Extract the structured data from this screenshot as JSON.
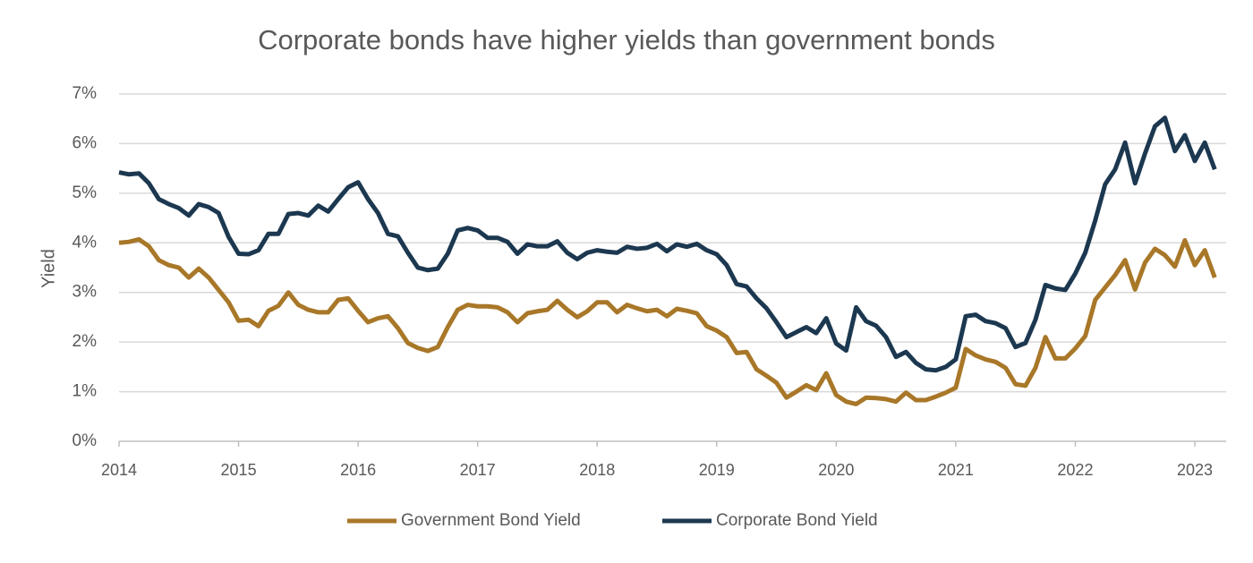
{
  "chart_data": {
    "type": "line",
    "title": "Corporate bonds have higher yields than government bonds",
    "y_label": "Yield",
    "categories": [
      "2014",
      null,
      null,
      null,
      null,
      null,
      null,
      null,
      null,
      null,
      null,
      null,
      "2015",
      null,
      null,
      null,
      null,
      null,
      null,
      null,
      null,
      null,
      null,
      null,
      "2016",
      null,
      null,
      null,
      null,
      null,
      null,
      null,
      null,
      null,
      null,
      null,
      "2017",
      null,
      null,
      null,
      null,
      null,
      null,
      null,
      null,
      null,
      null,
      null,
      "2018",
      null,
      null,
      null,
      null,
      null,
      null,
      null,
      null,
      null,
      null,
      null,
      "2019",
      null,
      null,
      null,
      null,
      null,
      null,
      null,
      null,
      null,
      null,
      null,
      "2020",
      null,
      null,
      null,
      null,
      null,
      null,
      null,
      null,
      null,
      null,
      null,
      "2021",
      null,
      null,
      null,
      null,
      null,
      null,
      null,
      null,
      null,
      null,
      null,
      "2022",
      null,
      null,
      null,
      null,
      null,
      null,
      null,
      null,
      null,
      null,
      null,
      "2023",
      null,
      null
    ],
    "series": [
      {
        "name": "Government Bond Yield",
        "color": "#a87728",
        "values": [
          4.0,
          4.02,
          4.07,
          3.93,
          3.65,
          3.55,
          3.5,
          3.3,
          3.48,
          3.3,
          3.05,
          2.8,
          2.43,
          2.45,
          2.32,
          2.63,
          2.73,
          3.0,
          2.75,
          2.65,
          2.6,
          2.6,
          2.85,
          2.88,
          2.63,
          2.4,
          2.48,
          2.52,
          2.28,
          1.98,
          1.88,
          1.82,
          1.9,
          2.3,
          2.65,
          2.75,
          2.72,
          2.72,
          2.7,
          2.6,
          2.4,
          2.58,
          2.62,
          2.65,
          2.83,
          2.65,
          2.5,
          2.62,
          2.8,
          2.8,
          2.6,
          2.75,
          2.68,
          2.62,
          2.65,
          2.52,
          2.67,
          2.63,
          2.58,
          2.32,
          2.23,
          2.1,
          1.78,
          1.8,
          1.45,
          1.32,
          1.18,
          0.88,
          1.0,
          1.13,
          1.03,
          1.37,
          0.93,
          0.8,
          0.75,
          0.88,
          0.87,
          0.85,
          0.8,
          0.98,
          0.83,
          0.83,
          0.9,
          0.98,
          1.08,
          1.86,
          1.73,
          1.65,
          1.6,
          1.48,
          1.15,
          1.12,
          1.48,
          2.1,
          1.67,
          1.67,
          1.87,
          2.12,
          2.85,
          3.1,
          3.35,
          3.65,
          3.06,
          3.6,
          3.88,
          3.75,
          3.52,
          4.05,
          3.55,
          3.85,
          3.3
        ]
      },
      {
        "name": "Corporate Bond Yield",
        "color": "#1c3850",
        "values": [
          5.42,
          5.38,
          5.4,
          5.2,
          4.88,
          4.78,
          4.7,
          4.55,
          4.78,
          4.72,
          4.6,
          4.12,
          3.78,
          3.77,
          3.85,
          4.18,
          4.18,
          4.58,
          4.6,
          4.55,
          4.75,
          4.63,
          4.88,
          5.12,
          5.22,
          4.88,
          4.6,
          4.18,
          4.13,
          3.8,
          3.5,
          3.45,
          3.48,
          3.78,
          4.25,
          4.3,
          4.25,
          4.1,
          4.1,
          4.02,
          3.78,
          3.97,
          3.93,
          3.93,
          4.03,
          3.8,
          3.67,
          3.8,
          3.85,
          3.82,
          3.8,
          3.92,
          3.88,
          3.9,
          3.98,
          3.83,
          3.97,
          3.92,
          3.98,
          3.85,
          3.77,
          3.55,
          3.17,
          3.12,
          2.88,
          2.68,
          2.4,
          2.1,
          2.2,
          2.3,
          2.18,
          2.48,
          1.97,
          1.83,
          2.7,
          2.42,
          2.33,
          2.1,
          1.7,
          1.8,
          1.58,
          1.45,
          1.43,
          1.5,
          1.65,
          2.52,
          2.55,
          2.42,
          2.38,
          2.28,
          1.9,
          1.98,
          2.45,
          3.15,
          3.08,
          3.05,
          3.38,
          3.8,
          4.45,
          5.18,
          5.48,
          6.02,
          5.2,
          5.8,
          6.35,
          6.52,
          5.85,
          6.17,
          5.65,
          6.02,
          5.48
        ]
      }
    ],
    "ylim": [
      0,
      7
    ],
    "yticks": [
      {
        "value": 0,
        "label": "0%"
      },
      {
        "value": 1,
        "label": "1%"
      },
      {
        "value": 2,
        "label": "2%"
      },
      {
        "value": 3,
        "label": "3%"
      },
      {
        "value": 4,
        "label": "4%"
      },
      {
        "value": 5,
        "label": "5%"
      },
      {
        "value": 6,
        "label": "6%"
      },
      {
        "value": 7,
        "label": "7%"
      }
    ],
    "grid": true,
    "legend": "bottom"
  }
}
